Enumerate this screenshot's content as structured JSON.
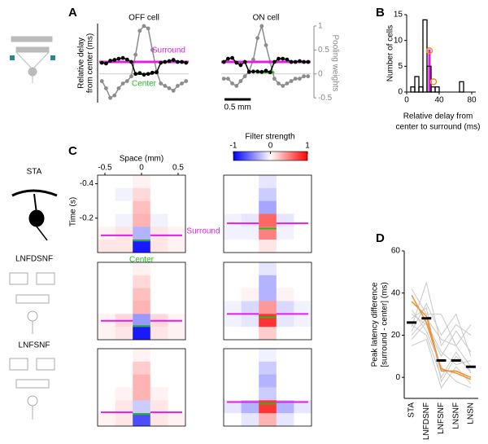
{
  "panels": [
    "A",
    "B",
    "C",
    "D"
  ],
  "chart_data": [
    {
      "type": "line",
      "title": "OFF cell",
      "ylabel": [
        "Relative delay",
        "from center (ms)"
      ],
      "x": [
        -0.8,
        -0.72,
        -0.64,
        -0.56,
        -0.48,
        -0.4,
        -0.32,
        -0.24,
        -0.16,
        -0.08,
        0,
        0.08,
        0.16,
        0.24,
        0.32,
        0.4,
        0.48,
        0.56,
        0.64,
        0.72,
        0.8
      ],
      "xlim": [
        -0.85,
        0.85
      ],
      "ylim": [
        -72,
        126
      ],
      "y2lim": [
        -0.6,
        1.05
      ],
      "series": [
        {
          "color": "#000000",
          "values": [
            28,
            26,
            33,
            35,
            38,
            40,
            36,
            30,
            0,
            2,
            -2,
            0,
            3,
            4,
            28,
            30,
            32,
            35,
            30,
            30,
            28
          ]
        },
        {
          "color": "#8c8c8c",
          "axis": "y2",
          "values": [
            -0.15,
            -0.3,
            -0.5,
            -0.45,
            -0.3,
            -0.2,
            -0.15,
            -0.05,
            0.4,
            0.9,
            1,
            0.95,
            0.5,
            0.05,
            -0.2,
            -0.25,
            -0.3,
            -0.35,
            -0.25,
            -0.2,
            -0.15
          ]
        }
      ],
      "surround": {
        "label": "Surround",
        "value": 30,
        "color": "#e020e0"
      },
      "center": {
        "label": "Center",
        "value": 0,
        "color": "#22bb22"
      }
    },
    {
      "type": "line",
      "title": "ON cell",
      "y2label": "Pooling weights",
      "x": [
        -0.8,
        -0.72,
        -0.64,
        -0.56,
        -0.48,
        -0.4,
        -0.32,
        -0.24,
        -0.16,
        -0.08,
        0,
        0.08,
        0.16,
        0.24,
        0.32,
        0.4,
        0.48,
        0.56,
        0.64,
        0.72,
        0.8
      ],
      "xlim": [
        -0.85,
        0.85
      ],
      "ylim": [
        -72,
        126
      ],
      "y2lim": [
        -0.6,
        1.05
      ],
      "y2ticks": [
        -0.5,
        0,
        0.5,
        1
      ],
      "series": [
        {
          "color": "#000000",
          "values": [
            30,
            38,
            40,
            28,
            22,
            30,
            5,
            6,
            6,
            5,
            8,
            4,
            30,
            38,
            38,
            36,
            30,
            30,
            32,
            30,
            30
          ]
        },
        {
          "color": "#8c8c8c",
          "axis": "y2",
          "values": [
            -0.1,
            -0.1,
            -0.2,
            -0.25,
            -0.15,
            -0.05,
            0.05,
            0.3,
            0.75,
            1,
            0.6,
            0.25,
            -0.1,
            -0.2,
            -0.25,
            -0.2,
            -0.15,
            -0.1,
            -0.1,
            -0.05,
            -0.05
          ]
        }
      ],
      "surround": {
        "value": 30,
        "color": "#e020e0"
      },
      "center": {
        "value": 4,
        "color": "#22bb22"
      },
      "scalebar": {
        "label": "0.5 mm",
        "value": 0.5
      }
    },
    {
      "type": "histogram",
      "ylabel": "Number of cells",
      "xlabel": [
        "Relative delay from",
        "center to surround (ms)"
      ],
      "bins": [
        5,
        10,
        15,
        20,
        25,
        30,
        35,
        40,
        45,
        50,
        55,
        60,
        65,
        70,
        75,
        80
      ],
      "counts": [
        1,
        3,
        1,
        14,
        5,
        1,
        1,
        0,
        0,
        0,
        0,
        0,
        2,
        0,
        0
      ],
      "color": "#000000",
      "xlim": [
        0,
        85
      ],
      "ylim": [
        0,
        15
      ],
      "xticks": [
        0,
        40,
        80
      ],
      "yticks": [
        0,
        5,
        10,
        15
      ],
      "highlight": {
        "value": 28,
        "color": "#e020e0"
      },
      "points": {
        "color": "#f0902a",
        "x": [
          28,
          33
        ],
        "y": [
          8,
          2
        ]
      }
    },
    {
      "type": "heatmap",
      "row_label": "STA",
      "xlabel": "Space (mm)",
      "ylabel": "Time (s)",
      "xlim": [
        -0.6,
        0.6
      ],
      "ylim": [
        -0.45,
        0
      ],
      "xticks": [
        -0.5,
        0,
        0.5
      ],
      "yticks": [
        -0.4,
        -0.2
      ],
      "z": [
        [
          0,
          0,
          0.05,
          0,
          0
        ],
        [
          0,
          -0.05,
          0.15,
          0,
          0
        ],
        [
          0,
          0,
          0.25,
          0,
          0
        ],
        [
          0,
          -0.05,
          0.3,
          -0.05,
          0
        ],
        [
          0.05,
          0.1,
          -0.3,
          0.1,
          0.05
        ],
        [
          0.1,
          0.1,
          -0.9,
          0.1,
          0.05
        ]
      ],
      "surround": {
        "label": "Surround",
        "value": -0.1,
        "color": "#e020e0"
      },
      "center": {
        "label": "Center",
        "value": -0.07,
        "color": "#22bb22"
      }
    },
    {
      "type": "heatmap",
      "xlim": [
        -0.6,
        0.6
      ],
      "ylim": [
        -0.45,
        0
      ],
      "colorbar": {
        "label": "Filter strength",
        "ticks": [
          -1,
          0,
          1
        ]
      },
      "z": [
        [
          0,
          0,
          -0.1,
          0,
          0
        ],
        [
          0,
          0,
          -0.2,
          0,
          0
        ],
        [
          0,
          0,
          -0.35,
          0,
          0
        ],
        [
          -0.05,
          -0.1,
          0.6,
          -0.1,
          0
        ],
        [
          -0.05,
          -0.05,
          0.5,
          -0.05,
          0
        ],
        [
          0,
          0,
          0.1,
          0,
          0
        ]
      ],
      "surround": {
        "value": -0.17,
        "color": "#e020e0"
      },
      "center": {
        "value": -0.14,
        "color": "#22bb22"
      }
    },
    {
      "type": "heatmap",
      "row_label": "LNFDSNF",
      "xlim": [
        -0.6,
        0.6
      ],
      "ylim": [
        -0.45,
        0
      ],
      "z": [
        [
          0,
          0,
          0.05,
          0,
          0
        ],
        [
          0,
          0,
          0.15,
          0,
          0
        ],
        [
          0,
          0,
          0.25,
          0,
          0
        ],
        [
          0,
          0,
          0.3,
          0,
          0
        ],
        [
          0.05,
          0.15,
          -0.4,
          0.15,
          0.05
        ],
        [
          0.05,
          0.1,
          -0.9,
          0.1,
          0.05
        ]
      ],
      "surround": {
        "value": -0.11,
        "color": "#e020e0"
      },
      "center": {
        "value": -0.08,
        "color": "#22bb22"
      }
    },
    {
      "type": "heatmap",
      "xlim": [
        -0.6,
        0.6
      ],
      "ylim": [
        -0.45,
        0
      ],
      "z": [
        [
          0,
          0,
          -0.1,
          0,
          0
        ],
        [
          0,
          0,
          -0.3,
          0,
          0
        ],
        [
          0,
          0.05,
          -0.3,
          0.05,
          0
        ],
        [
          -0.05,
          -0.15,
          0.4,
          -0.15,
          -0.05
        ],
        [
          -0.05,
          -0.1,
          0.8,
          -0.1,
          -0.05
        ],
        [
          0,
          0,
          0.2,
          0,
          0
        ]
      ],
      "surround": {
        "value": -0.15,
        "color": "#e020e0"
      },
      "center": {
        "value": -0.13,
        "color": "#22bb22"
      }
    },
    {
      "type": "heatmap",
      "row_label": "LNFSNF",
      "xlim": [
        -0.6,
        0.6
      ],
      "ylim": [
        -0.45,
        0
      ],
      "z": [
        [
          0,
          0,
          0.05,
          0,
          0
        ],
        [
          0,
          0,
          0.2,
          0,
          0
        ],
        [
          0,
          0,
          0.3,
          0,
          0
        ],
        [
          0,
          0.05,
          0.3,
          0.05,
          0
        ],
        [
          0,
          0.1,
          -0.2,
          0.1,
          0
        ],
        [
          0.05,
          0.1,
          -0.7,
          0.1,
          0.05
        ]
      ],
      "surround": {
        "value": -0.08,
        "color": "#e020e0"
      },
      "center": {
        "value": -0.07,
        "color": "#22bb22"
      }
    },
    {
      "type": "heatmap",
      "xlim": [
        -0.6,
        0.6
      ],
      "ylim": [
        -0.45,
        0
      ],
      "z": [
        [
          0,
          0,
          -0.05,
          0,
          0
        ],
        [
          0,
          0,
          -0.2,
          0,
          0
        ],
        [
          0,
          0,
          -0.3,
          0,
          0
        ],
        [
          0,
          0,
          -0.2,
          0,
          0
        ],
        [
          -0.1,
          -0.3,
          0.8,
          -0.3,
          -0.1
        ],
        [
          0,
          -0.1,
          0.3,
          -0.1,
          0
        ]
      ],
      "surround": {
        "value": -0.14,
        "color": "#e020e0"
      },
      "center": {
        "value": -0.13,
        "color": "#22bb22"
      }
    },
    {
      "type": "category_line",
      "ylabel": [
        "Peak latency difference",
        "[surround - center] (ms)"
      ],
      "categories": [
        "STA",
        "LNFDSNF",
        "LNFSNF",
        "LNSNF",
        "LNSN"
      ],
      "ylim": [
        -10,
        60
      ],
      "yticks": [
        0,
        20,
        40,
        60
      ],
      "series": [
        {
          "color": "#c8c8c8",
          "values": [
            20,
            28,
            18,
            15,
            5
          ]
        },
        {
          "color": "#c8c8c8",
          "values": [
            30,
            25,
            10,
            22,
            12
          ]
        },
        {
          "color": "#c8c8c8",
          "values": [
            15,
            18,
            -5,
            5,
            -3
          ]
        },
        {
          "color": "#c8c8c8",
          "values": [
            42,
            30,
            30,
            15,
            25
          ]
        },
        {
          "color": "#c8c8c8",
          "values": [
            22,
            35,
            20,
            30,
            10
          ]
        },
        {
          "color": "#c8c8c8",
          "values": [
            25,
            20,
            0,
            12,
            2
          ]
        },
        {
          "color": "#c8c8c8",
          "values": [
            32,
            22,
            5,
            -2,
            -5
          ]
        },
        {
          "color": "#c8c8c8",
          "values": [
            18,
            26,
            12,
            6,
            8
          ]
        },
        {
          "color": "#c8c8c8",
          "values": [
            28,
            33,
            -2,
            10,
            3
          ]
        },
        {
          "color": "#c8c8c8",
          "values": [
            24,
            45,
            15,
            25,
            20
          ]
        },
        {
          "color": "#f0902a",
          "values": [
            39,
            26,
            4,
            2,
            -1
          ]
        },
        {
          "color": "#f0902a",
          "values": [
            36,
            29,
            3,
            3,
            0
          ]
        }
      ],
      "means": {
        "color": "#000000",
        "values": [
          26,
          28,
          8,
          8,
          5
        ]
      }
    }
  ]
}
